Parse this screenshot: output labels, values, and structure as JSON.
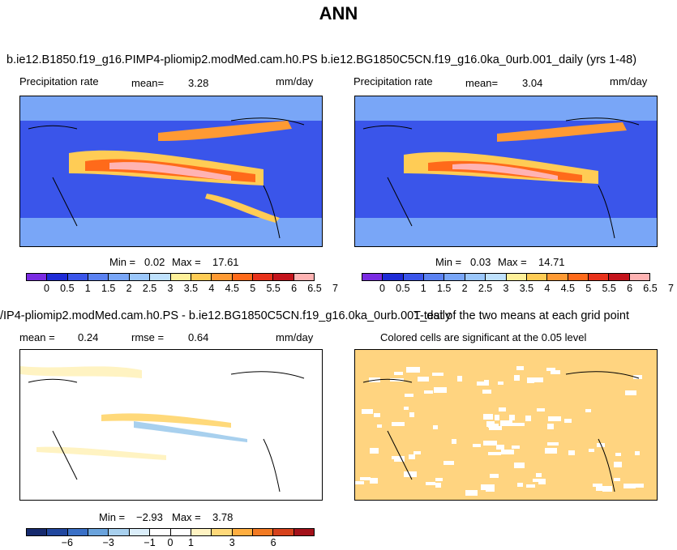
{
  "page": {
    "title": "ANN",
    "run_title_top": "b.ie12.B1850.f19_g16.PIMP4-pliomip2.modMed.cam.h0.PS b.ie12.BG1850C5CN.f19_g16.0ka_0urb.001_daily (yrs 1-48)",
    "run_title_diff": "/IP4-pliomip2.modMed.cam.h0.PS - b.ie12.BG1850C5CN.f19_g16.0ka_0urb.001_daily",
    "ttest_title": "T-test of the two means at each grid point"
  },
  "colors": {
    "precip_scale": [
      "#7a2be2",
      "#1e2bd6",
      "#3a55ea",
      "#5b82f2",
      "#79a6f7",
      "#9bc7fb",
      "#bfe1fd",
      "#fff099",
      "#ffcc55",
      "#ff9a33",
      "#ff6a1a",
      "#e8321b",
      "#c4141c",
      "#ffb3b3"
    ],
    "diff_scale": [
      "#162a6e",
      "#21479e",
      "#3a70c6",
      "#6aa3dc",
      "#a8d0ee",
      "#dbeefa",
      "#ffffff",
      "#ffffff",
      "#fff3c2",
      "#ffd97a",
      "#ffae40",
      "#f27a23",
      "#d6421c",
      "#a3111a"
    ],
    "ttest_fill": "#ffd480"
  },
  "chart_data": [
    {
      "type": "heatmap",
      "title": "Precipitation rate",
      "mean_label": "mean=",
      "mean": "3.28",
      "units": "mm/day",
      "min_label": "Min =",
      "min": "0.02",
      "max_label": "Max =",
      "max": "17.61",
      "colorbar_ticks": [
        "0",
        "0.5",
        "1",
        "1.5",
        "2",
        "2.5",
        "3",
        "3.5",
        "4",
        "4.5",
        "5",
        "5.5",
        "6",
        "6.5",
        "7"
      ]
    },
    {
      "type": "heatmap",
      "title": "Precipitation rate",
      "mean_label": "mean=",
      "mean": "3.04",
      "units": "mm/day",
      "min_label": "Min =",
      "min": "0.03",
      "max_label": "Max =",
      "max": "14.71",
      "colorbar_ticks": [
        "0",
        "0.5",
        "1",
        "1.5",
        "2",
        "2.5",
        "3",
        "3.5",
        "4",
        "4.5",
        "5",
        "5.5",
        "6",
        "6.5",
        "7"
      ]
    },
    {
      "type": "heatmap",
      "mean_label": "mean =",
      "mean": "0.24",
      "rmse_label": "rmse =",
      "rmse": "0.64",
      "units": "mm/day",
      "min_label": "Min =",
      "min": "−2.93",
      "max_label": "Max =",
      "max": "3.78",
      "colorbar_ticks": [
        "−6",
        "−3",
        "−1",
        "0",
        "1",
        "3",
        "6"
      ]
    },
    {
      "type": "heatmap",
      "subtitle": "Colored cells are significant at the 0.05 level"
    }
  ]
}
